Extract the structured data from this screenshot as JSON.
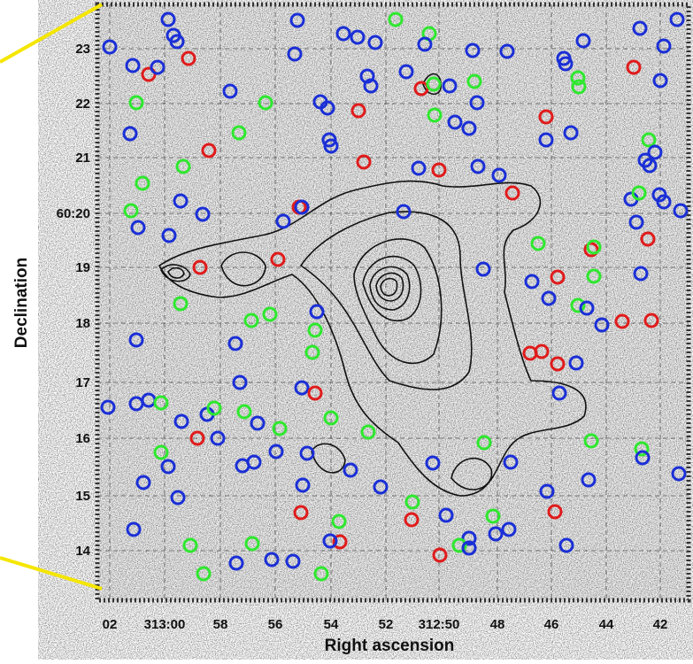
{
  "axes": {
    "x": {
      "label": "Right ascension",
      "ticks": [
        "02",
        "313:00",
        "58",
        "56",
        "54",
        "52",
        "312:50",
        "48",
        "46",
        "44",
        "42"
      ]
    },
    "y": {
      "label": "Declination",
      "ticks": [
        "23",
        "22",
        "21",
        "60:20",
        "19",
        "18",
        "17",
        "16",
        "15",
        "14"
      ]
    }
  }
}
